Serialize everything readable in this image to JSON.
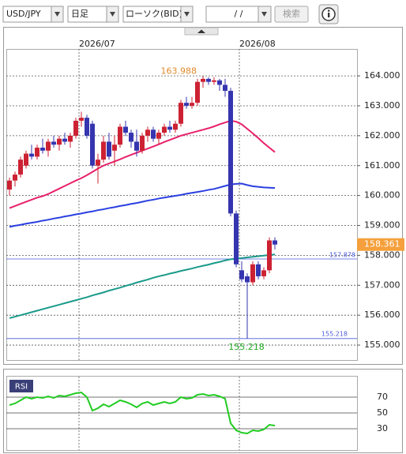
{
  "toolbar": {
    "symbol": "USD/JPY",
    "period": "日足",
    "chart_type": "ローソク(BID)",
    "date": "/ /",
    "search": "検索"
  },
  "chart_data": [
    {
      "type": "candlestick",
      "categories": [
        null,
        null,
        null,
        null,
        null,
        null,
        null,
        null,
        null,
        null,
        null,
        null,
        null,
        null,
        null,
        null,
        null,
        null,
        null,
        null,
        null,
        null,
        null,
        null,
        null,
        null,
        null,
        null,
        null,
        null,
        null,
        null,
        null,
        null,
        null,
        null,
        null,
        null,
        null,
        null,
        null,
        null,
        null,
        null,
        null,
        null,
        null,
        null,
        null
      ],
      "xticks": [
        {
          "value": 13,
          "label": "2026/07"
        },
        {
          "value": 42,
          "label": "2026/08"
        }
      ],
      "ohlc": {
        "open": [
          160.2,
          160.5,
          160.7,
          161.0,
          161.4,
          161.3,
          161.6,
          161.5,
          161.8,
          161.7,
          161.9,
          161.8,
          162.0,
          162.5,
          162.6,
          162.4,
          161.0,
          161.2,
          161.8,
          161.5,
          161.7,
          162.3,
          162.1,
          161.8,
          161.5,
          162.0,
          162.2,
          161.9,
          162.1,
          162.3,
          162.2,
          162.4,
          163.1,
          163.0,
          163.1,
          163.8,
          163.9,
          163.8,
          163.85,
          163.7,
          163.5,
          159.4,
          157.5,
          157.3,
          157.1,
          157.7,
          157.3,
          157.5,
          158.5
        ],
        "high": [
          160.6,
          160.8,
          161.3,
          161.5,
          161.7,
          161.7,
          161.9,
          161.9,
          162.0,
          162.0,
          162.1,
          162.1,
          162.6,
          162.8,
          162.7,
          162.5,
          161.4,
          162.0,
          162.1,
          162.0,
          162.4,
          162.5,
          162.2,
          162.2,
          162.1,
          162.3,
          162.3,
          162.2,
          162.4,
          162.5,
          162.5,
          163.2,
          163.3,
          163.3,
          163.9,
          163.988,
          163.95,
          163.95,
          163.9,
          163.9,
          163.6,
          159.5,
          157.8,
          157.4,
          157.8,
          157.8,
          157.6,
          158.6,
          158.6
        ],
        "low": [
          160.0,
          160.3,
          160.6,
          160.9,
          161.2,
          161.2,
          161.4,
          161.3,
          161.6,
          161.5,
          161.7,
          161.6,
          161.9,
          162.3,
          161.9,
          160.9,
          160.4,
          161.1,
          161.2,
          161.0,
          161.6,
          162.0,
          161.6,
          161.3,
          161.4,
          161.8,
          161.8,
          161.7,
          162.0,
          162.1,
          162.1,
          162.3,
          162.9,
          162.9,
          163.0,
          163.6,
          163.7,
          163.7,
          163.5,
          163.3,
          159.3,
          157.6,
          157.1,
          155.218,
          157.0,
          157.2,
          157.2,
          157.4,
          158.2
        ],
        "close": [
          160.5,
          160.7,
          161.2,
          161.4,
          161.3,
          161.6,
          161.5,
          161.8,
          161.7,
          161.9,
          161.8,
          162.0,
          162.5,
          162.6,
          162.0,
          161.0,
          161.2,
          161.8,
          161.3,
          161.7,
          162.3,
          162.1,
          161.8,
          161.5,
          162.0,
          162.2,
          161.9,
          162.1,
          162.3,
          162.2,
          162.4,
          163.1,
          163.0,
          163.1,
          163.8,
          163.9,
          163.8,
          163.85,
          163.7,
          163.5,
          159.4,
          157.7,
          157.2,
          157.1,
          157.7,
          157.3,
          157.5,
          158.5,
          158.361
        ]
      },
      "up_color": "#cc2233",
      "down_color": "#3535b0",
      "overlays": [
        {
          "color": "#e8206a",
          "values": [
            159.58,
            159.65,
            159.72,
            159.79,
            159.86,
            159.93,
            159.98,
            160.05,
            160.14,
            160.23,
            160.32,
            160.41,
            160.5,
            160.58,
            160.68,
            160.79,
            160.9,
            161.0,
            161.07,
            161.14,
            161.21,
            161.29,
            161.36,
            161.43,
            161.5,
            161.57,
            161.64,
            161.71,
            161.79,
            161.86,
            161.93,
            162.0,
            162.05,
            162.1,
            162.15,
            162.2,
            162.25,
            162.31,
            162.38,
            162.44,
            162.5,
            162.47,
            162.38,
            162.23,
            162.08,
            161.92,
            161.75,
            161.6,
            161.45
          ]
        },
        {
          "color": "#2a3fe0",
          "values": [
            158.95,
            158.99,
            159.02,
            159.06,
            159.09,
            159.12,
            159.16,
            159.19,
            159.23,
            159.26,
            159.3,
            159.33,
            159.37,
            159.4,
            159.44,
            159.47,
            159.51,
            159.54,
            159.58,
            159.61,
            159.65,
            159.68,
            159.72,
            159.75,
            159.79,
            159.83,
            159.86,
            159.9,
            159.93,
            159.96,
            159.99,
            160.02,
            160.06,
            160.09,
            160.12,
            160.15,
            160.19,
            160.22,
            160.27,
            160.32,
            160.37,
            160.39,
            160.4,
            160.35,
            160.31,
            160.29,
            160.27,
            160.26,
            160.25
          ]
        },
        {
          "color": "#1a9a8a",
          "values": [
            155.9,
            155.95,
            156.0,
            156.05,
            156.1,
            156.15,
            156.2,
            156.25,
            156.3,
            156.35,
            156.4,
            156.45,
            156.5,
            156.55,
            156.6,
            156.66,
            156.71,
            156.76,
            156.82,
            156.87,
            156.92,
            156.98,
            157.03,
            157.09,
            157.14,
            157.19,
            157.25,
            157.3,
            157.34,
            157.39,
            157.43,
            157.48,
            157.52,
            157.56,
            157.61,
            157.65,
            157.69,
            157.74,
            157.78,
            157.83,
            157.87,
            157.89,
            157.91,
            157.93,
            157.95,
            157.97,
            157.99,
            158.01,
            158.03
          ]
        }
      ],
      "reference_value": 157.878,
      "ylim": [
        154.5,
        164.9
      ],
      "yticks": [
        {
          "value": 164,
          "label": "164.000"
        },
        {
          "value": 163,
          "label": "163.000"
        },
        {
          "value": 162,
          "label": "162.000"
        },
        {
          "value": 161,
          "label": "161.000"
        },
        {
          "value": 160,
          "label": "160.000"
        },
        {
          "value": 159,
          "label": "159.000"
        },
        {
          "value": 158,
          "label": "158.000"
        },
        {
          "value": 157,
          "label": "157.000"
        },
        {
          "value": 156,
          "label": "156.000"
        },
        {
          "value": 155,
          "label": "155.000"
        }
      ],
      "grid": true
    },
    {
      "type": "line",
      "title": "RSI",
      "color": "#22cc22",
      "values": [
        60,
        62,
        66,
        70,
        68,
        70,
        69,
        71,
        69,
        72,
        71,
        73,
        75,
        76,
        70,
        53,
        56,
        61,
        58,
        62,
        66,
        64,
        61,
        57,
        62,
        64,
        60,
        62,
        64,
        62,
        64,
        70,
        68,
        69,
        73,
        74,
        72,
        73,
        71,
        68,
        37,
        28,
        25,
        24,
        28,
        27,
        29,
        35,
        34
      ],
      "ylim": [
        5,
        95
      ],
      "yticks": [
        70,
        50,
        30
      ],
      "grid": true
    }
  ]
}
